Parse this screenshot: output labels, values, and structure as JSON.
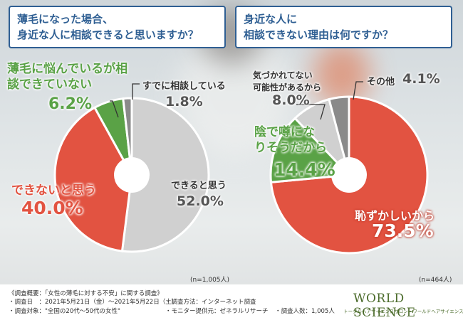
{
  "left": {
    "question_line1": "薄毛になった場合、",
    "question_line2": "身近な人に相談できると思いますか？",
    "n_note": "(n=1,005人)"
  },
  "right": {
    "question_line1": "身近な人に",
    "question_line2": "相談できない理由は何ですか？",
    "n_note": "(n=464人)"
  },
  "chart_data": [
    {
      "type": "pie",
      "title": "薄毛になった場合、身近な人に相談できると思いますか？",
      "slices": [
        {
          "label": "できると思う",
          "value": 52.0,
          "display": "52.0%",
          "color": "#d0d0d0"
        },
        {
          "label": "できないと思う",
          "value": 40.0,
          "display": "40.0%",
          "color": "#e25341"
        },
        {
          "label": "薄毛に悩んでいるが相談できていない",
          "value": 6.2,
          "display": "6.2%",
          "color": "#5aa246"
        },
        {
          "label": "すでに相談している",
          "value": 1.8,
          "display": "1.8%",
          "color": "#8a8a8a"
        }
      ]
    },
    {
      "type": "pie",
      "title": "身近な人に相談できない理由は何ですか？",
      "slices": [
        {
          "label": "恥ずかしいから",
          "value": 73.5,
          "display": "73.5%",
          "color": "#e25341"
        },
        {
          "label": "陰で噂になりそうだから",
          "value": 14.4,
          "display": "14.4%",
          "color": "#5aa246"
        },
        {
          "label": "気づかれてない可能性があるから",
          "value": 8.0,
          "display": "8.0%",
          "color": "#d0d0d0"
        },
        {
          "label": "その他",
          "value": 4.1,
          "display": "4.1%",
          "color": "#8a8a8a"
        }
      ]
    }
  ],
  "footer": {
    "line1": "《調査概要：「女性の薄毛に対する不安」に関する調査》",
    "line2": "・調査日　：2021年5月21日（金）～2021年5月22日（土）",
    "line3": "・調査方法：インターネット調査",
    "line4": "・調査対象：\"全国の20代～50代の女性\"",
    "line5": "・モニター提供元：ゼネラルリサーチ",
    "line6": "・調査人数：1,005人",
    "logo_main": "WORLD SCIENCE",
    "logo_sub": "トータルヘアサイエンスサロン・ワールドヘアサイエンス"
  }
}
